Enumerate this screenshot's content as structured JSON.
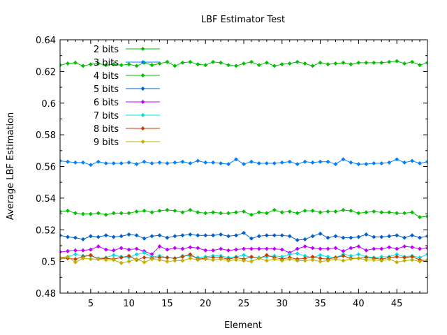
{
  "chart_data": {
    "type": "line",
    "title": "LBF Estimator Test",
    "xlabel": "Element",
    "ylabel": "Average LBF Estimation",
    "xlim": [
      1,
      49
    ],
    "ylim": [
      0.48,
      0.64
    ],
    "xticks": [
      5,
      10,
      15,
      20,
      25,
      30,
      35,
      40,
      45
    ],
    "yticks": [
      0.48,
      0.5,
      0.52,
      0.54,
      0.56,
      0.58,
      0.6,
      0.62,
      0.64
    ],
    "ytick_labels": [
      "0.48",
      "0.5",
      "0.52",
      "0.54",
      "0.56",
      "0.58",
      "0.6",
      "0.62",
      "0.64"
    ],
    "grid": false,
    "legend_position": "top-left",
    "x": [
      1,
      2,
      3,
      4,
      5,
      6,
      7,
      8,
      9,
      10,
      11,
      12,
      13,
      14,
      15,
      16,
      17,
      18,
      19,
      20,
      21,
      22,
      23,
      24,
      25,
      26,
      27,
      28,
      29,
      30,
      31,
      32,
      33,
      34,
      35,
      36,
      37,
      38,
      39,
      40,
      41,
      42,
      43,
      44,
      45,
      46,
      47,
      48,
      49
    ],
    "series": [
      {
        "name": "2 bits",
        "color": "#00c000",
        "values": [
          0.624,
          0.625,
          0.6255,
          0.6235,
          0.6245,
          0.625,
          0.624,
          0.6245,
          0.624,
          0.6245,
          0.6235,
          0.6255,
          0.624,
          0.625,
          0.626,
          0.6235,
          0.6255,
          0.626,
          0.6245,
          0.624,
          0.626,
          0.6255,
          0.624,
          0.6235,
          0.625,
          0.626,
          0.624,
          0.6255,
          0.6235,
          0.6245,
          0.625,
          0.626,
          0.625,
          0.6235,
          0.6255,
          0.6245,
          0.625,
          0.6255,
          0.6245,
          0.6255,
          0.6255,
          0.6255,
          0.6255,
          0.626,
          0.6265,
          0.625,
          0.626,
          0.624,
          0.6255
        ]
      },
      {
        "name": "3 bits",
        "color": "#0080ff",
        "values": [
          0.5635,
          0.563,
          0.5625,
          0.5625,
          0.561,
          0.563,
          0.562,
          0.562,
          0.562,
          0.5625,
          0.5615,
          0.563,
          0.562,
          0.5625,
          0.562,
          0.5625,
          0.563,
          0.562,
          0.5635,
          0.5625,
          0.5625,
          0.562,
          0.5615,
          0.5645,
          0.5615,
          0.563,
          0.562,
          0.562,
          0.562,
          0.5625,
          0.563,
          0.5615,
          0.563,
          0.5625,
          0.563,
          0.563,
          0.5615,
          0.5645,
          0.5625,
          0.5615,
          0.5615,
          0.562,
          0.562,
          0.5625,
          0.5645,
          0.5625,
          0.5635,
          0.562,
          0.563
        ]
      },
      {
        "name": "4 bits",
        "color": "#00c000",
        "values": [
          0.5315,
          0.532,
          0.5305,
          0.53,
          0.53,
          0.5305,
          0.5295,
          0.5305,
          0.5305,
          0.5305,
          0.5315,
          0.532,
          0.531,
          0.532,
          0.5325,
          0.532,
          0.531,
          0.5325,
          0.531,
          0.5305,
          0.531,
          0.5305,
          0.5305,
          0.531,
          0.5315,
          0.5295,
          0.531,
          0.5305,
          0.5325,
          0.531,
          0.5315,
          0.5305,
          0.532,
          0.532,
          0.531,
          0.5315,
          0.5315,
          0.5325,
          0.532,
          0.5305,
          0.531,
          0.5315,
          0.531,
          0.531,
          0.5305,
          0.5305,
          0.531,
          0.528,
          0.5285
        ]
      },
      {
        "name": "5 bits",
        "color": "#0060d0",
        "values": [
          0.5165,
          0.5155,
          0.515,
          0.514,
          0.516,
          0.5155,
          0.5165,
          0.5155,
          0.516,
          0.517,
          0.5165,
          0.5145,
          0.516,
          0.5165,
          0.515,
          0.516,
          0.5165,
          0.517,
          0.5165,
          0.5165,
          0.5165,
          0.517,
          0.516,
          0.5165,
          0.518,
          0.5145,
          0.516,
          0.5165,
          0.5165,
          0.5165,
          0.516,
          0.5135,
          0.514,
          0.516,
          0.5175,
          0.515,
          0.516,
          0.515,
          0.515,
          0.5155,
          0.517,
          0.5155,
          0.5155,
          0.516,
          0.5165,
          0.515,
          0.5165,
          0.515,
          0.516
        ]
      },
      {
        "name": "6 bits",
        "color": "#c000ff",
        "values": [
          0.506,
          0.5065,
          0.507,
          0.507,
          0.5075,
          0.5095,
          0.5075,
          0.507,
          0.5085,
          0.5075,
          0.508,
          0.5065,
          0.5045,
          0.5095,
          0.5075,
          0.5085,
          0.508,
          0.509,
          0.5085,
          0.507,
          0.507,
          0.508,
          0.507,
          0.5075,
          0.508,
          0.508,
          0.508,
          0.508,
          0.508,
          0.5075,
          0.5055,
          0.508,
          0.5095,
          0.5085,
          0.508,
          0.508,
          0.5085,
          0.5065,
          0.5085,
          0.5095,
          0.507,
          0.508,
          0.508,
          0.509,
          0.508,
          0.5095,
          0.509,
          0.508,
          0.5085
        ]
      },
      {
        "name": "7 bits",
        "color": "#00e0e0",
        "values": [
          0.502,
          0.503,
          0.5045,
          0.5035,
          0.5035,
          0.502,
          0.5025,
          0.504,
          0.503,
          0.5025,
          0.5045,
          0.5055,
          0.503,
          0.5035,
          0.5025,
          0.502,
          0.5035,
          0.5035,
          0.5025,
          0.503,
          0.5035,
          0.5035,
          0.5025,
          0.503,
          0.504,
          0.5025,
          0.5025,
          0.503,
          0.5035,
          0.503,
          0.5045,
          0.505,
          0.5035,
          0.5025,
          0.504,
          0.503,
          0.5025,
          0.5045,
          0.5035,
          0.5045,
          0.503,
          0.5025,
          0.503,
          0.503,
          0.5045,
          0.503,
          0.5035,
          0.5025,
          0.5045
        ]
      },
      {
        "name": "8 bits",
        "color": "#c04000",
        "values": [
          0.502,
          0.502,
          0.5015,
          0.503,
          0.504,
          0.5015,
          0.502,
          0.5015,
          0.5025,
          0.5035,
          0.501,
          0.5025,
          0.502,
          0.5025,
          0.5025,
          0.502,
          0.503,
          0.5045,
          0.5015,
          0.502,
          0.5025,
          0.5025,
          0.5015,
          0.5025,
          0.5015,
          0.503,
          0.502,
          0.504,
          0.5025,
          0.5015,
          0.5025,
          0.5015,
          0.502,
          0.503,
          0.502,
          0.5015,
          0.5025,
          0.5035,
          0.502,
          0.502,
          0.5025,
          0.502,
          0.5015,
          0.5025,
          0.503,
          0.5025,
          0.503,
          0.501,
          0.5005
        ]
      },
      {
        "name": "9 bits",
        "color": "#c0b000",
        "values": [
          0.5025,
          0.503,
          0.4995,
          0.502,
          0.5015,
          0.5015,
          0.501,
          0.501,
          0.499,
          0.5,
          0.5015,
          0.4995,
          0.5015,
          0.501,
          0.5,
          0.5005,
          0.5005,
          0.502,
          0.501,
          0.5015,
          0.501,
          0.5015,
          0.5005,
          0.501,
          0.5005,
          0.5,
          0.502,
          0.5005,
          0.5015,
          0.5005,
          0.5015,
          0.5005,
          0.5005,
          0.501,
          0.5,
          0.5005,
          0.5015,
          0.5005,
          0.5015,
          0.502,
          0.501,
          0.501,
          0.5005,
          0.5015,
          0.4995,
          0.5005,
          0.501,
          0.5,
          0.501
        ]
      }
    ]
  }
}
